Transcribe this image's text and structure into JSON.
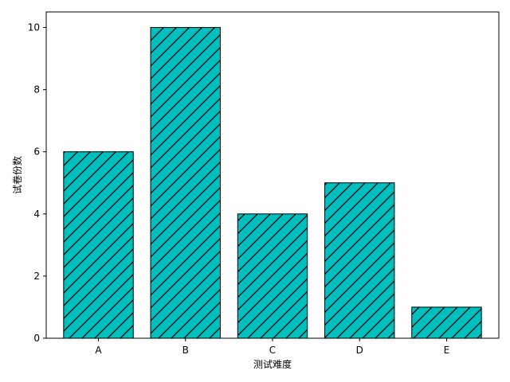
{
  "chart_data": {
    "type": "bar",
    "title": "",
    "xlabel": "测试难度",
    "ylabel": "试卷份数",
    "categories": [
      "A",
      "B",
      "C",
      "D",
      "E"
    ],
    "values": [
      6,
      10,
      4,
      5,
      1
    ],
    "ylim": [
      0,
      10.5
    ],
    "yticks": [
      0,
      2,
      4,
      6,
      8,
      10
    ],
    "grid": false,
    "legend": "none",
    "bar_color": "#00bfbf",
    "hatch": "diagonal-lines",
    "hatch_color": "#000000",
    "edge_color": "#000000"
  }
}
